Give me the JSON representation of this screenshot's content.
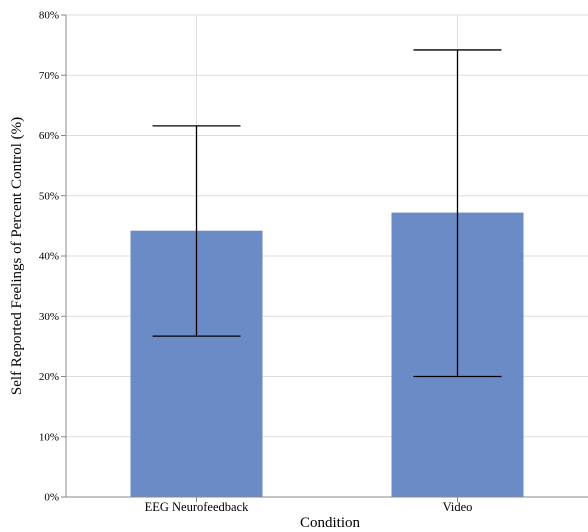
{
  "chart_data": {
    "type": "bar",
    "title": "",
    "xlabel": "Condition",
    "ylabel": "Self Reported Feelings of Percent Control (%)",
    "categories": [
      "EEG Neurofeedback",
      "Video"
    ],
    "values": [
      44.2,
      47.2
    ],
    "error_low": [
      26.7,
      20.0
    ],
    "error_high": [
      61.6,
      74.2
    ],
    "ylim": [
      0,
      80
    ],
    "yticks": [
      0,
      10,
      20,
      30,
      40,
      50,
      60,
      70,
      80
    ],
    "ytick_labels": [
      "0%",
      "10%",
      "20%",
      "30%",
      "40%",
      "50%",
      "60%",
      "70%",
      "80%"
    ],
    "grid": true,
    "bar_color": "#6a8bc6"
  }
}
